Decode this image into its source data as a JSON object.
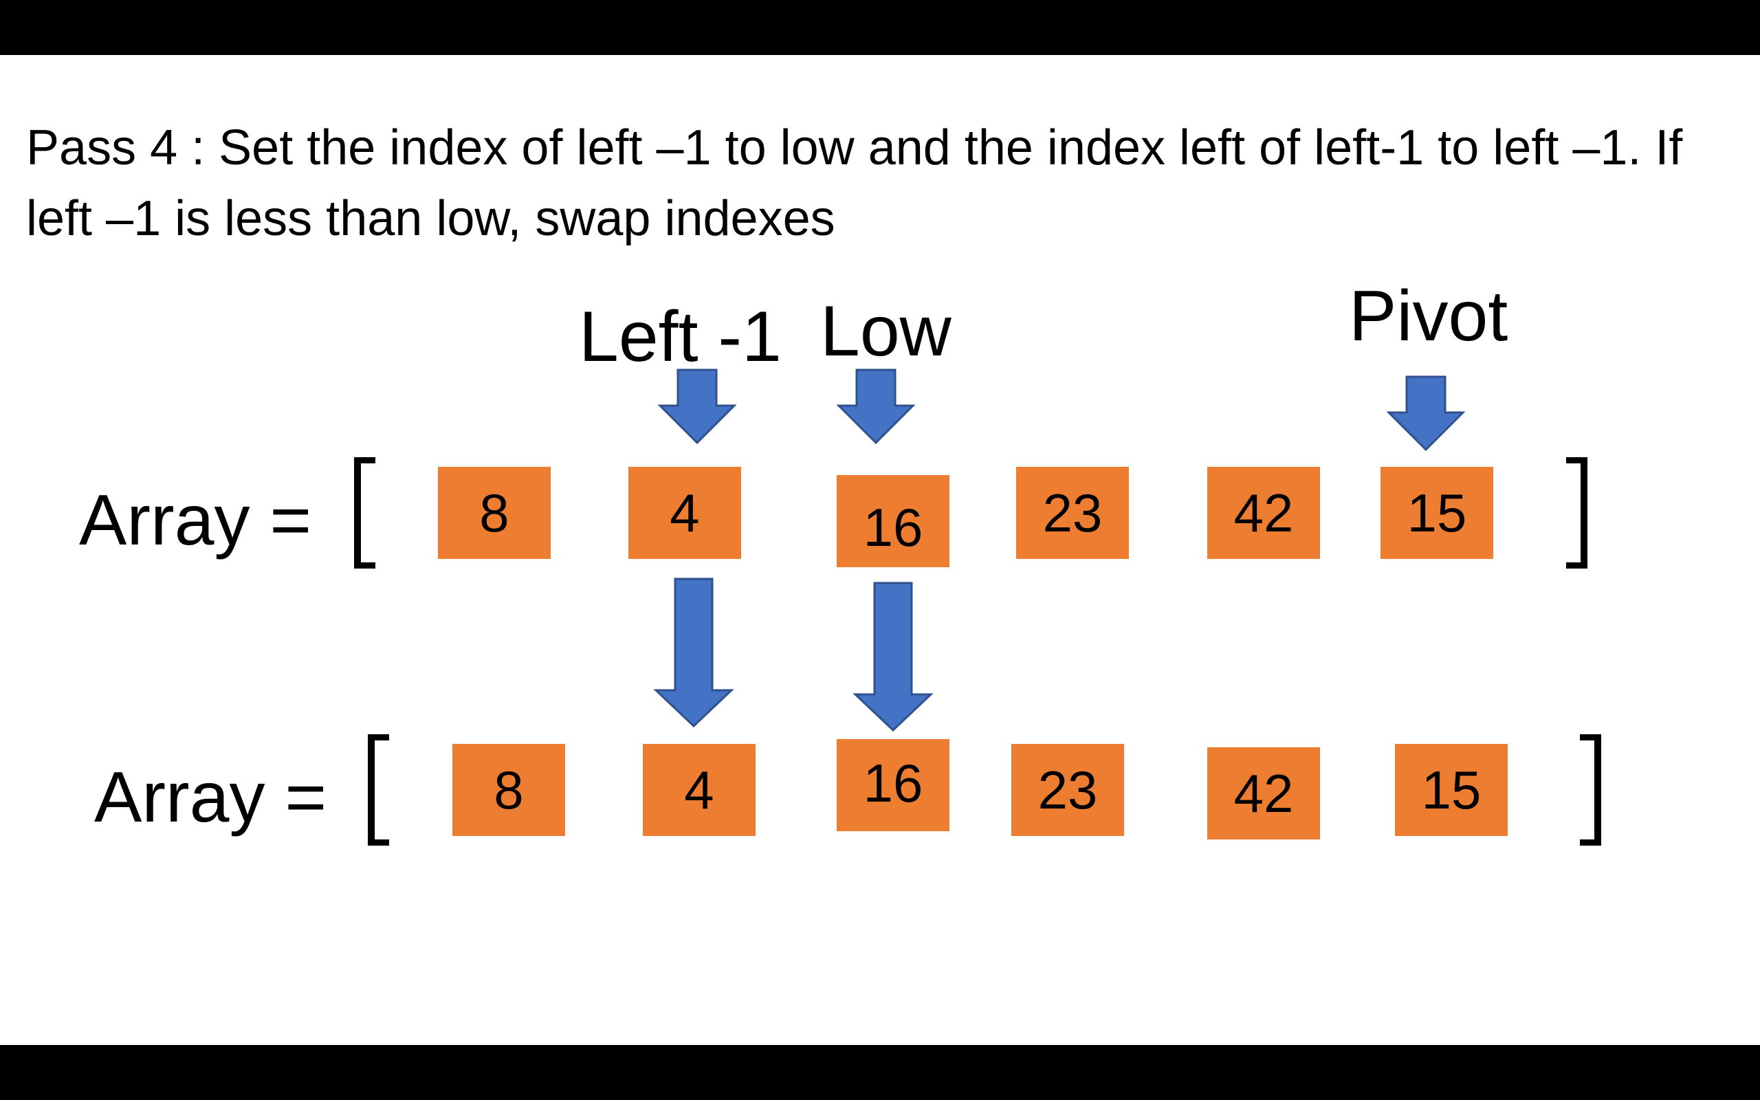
{
  "caption": "Pass 4 : Set the index of left –1 to low and the index left of left-1 to left –1. If left –1 is less than low, swap indexes",
  "pointer_labels": {
    "left_minus_1": "Left -1",
    "low": "Low",
    "pivot": "Pivot"
  },
  "array_label": "Array =",
  "arrays": [
    {
      "name": "before",
      "values": [
        "8",
        "4",
        "16",
        "23",
        "42",
        "15"
      ]
    },
    {
      "name": "after",
      "values": [
        "8",
        "4",
        "16",
        "23",
        "42",
        "15"
      ]
    }
  ],
  "colors": {
    "cell_fill": "#ED7D31",
    "arrow_fill": "#4472C4",
    "arrow_stroke": "#2F528F",
    "bar": "#000000",
    "background": "#FFFFFF"
  }
}
